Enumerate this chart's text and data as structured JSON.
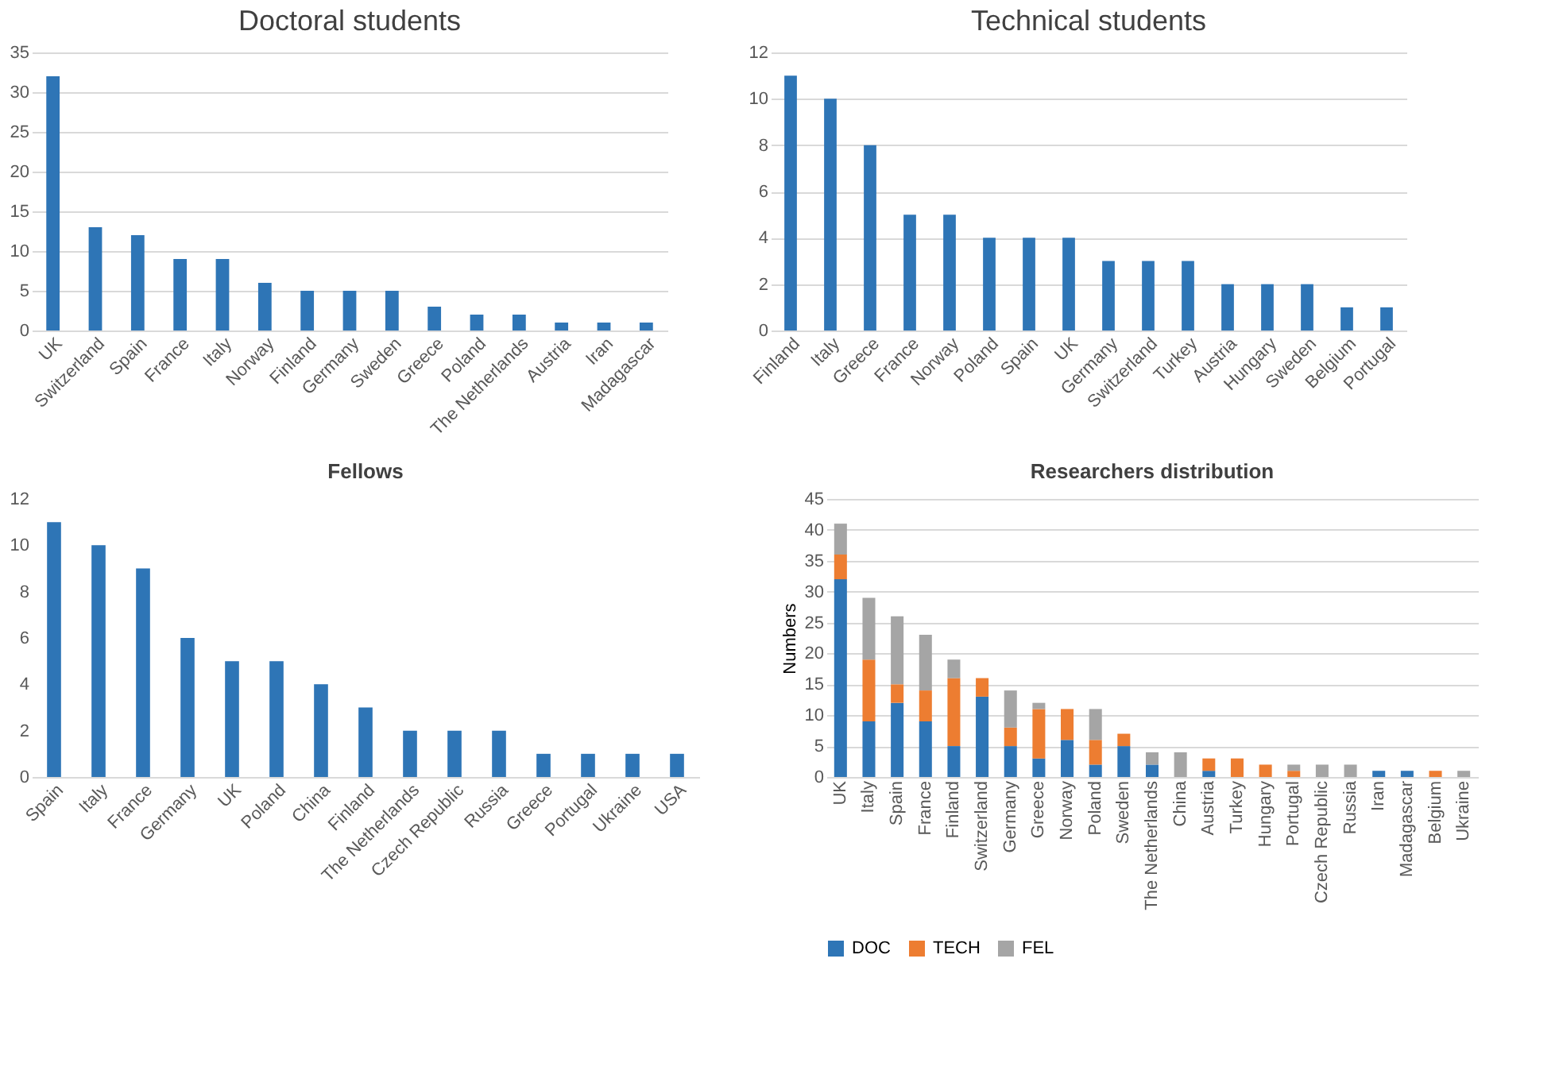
{
  "chart_data": [
    {
      "type": "bar",
      "title": "Doctoral students",
      "categories": [
        "UK",
        "Switzerland",
        "Spain",
        "France",
        "Italy",
        "Norway",
        "Finland",
        "Germany",
        "Sweden",
        "Greece",
        "Poland",
        "The Netherlands",
        "Austria",
        "Iran",
        "Madagascar"
      ],
      "values": [
        32,
        13,
        12,
        9,
        9,
        6,
        5,
        5,
        5,
        3,
        2,
        2,
        1,
        1,
        1
      ],
      "color": "#2e75b6",
      "ylim": [
        0,
        35
      ],
      "yticks": [
        0,
        5,
        10,
        15,
        20,
        25,
        30,
        35
      ],
      "grid": "y"
    },
    {
      "type": "bar",
      "title": "Technical students",
      "categories": [
        "Finland",
        "Italy",
        "Greece",
        "France",
        "Norway",
        "Poland",
        "Spain",
        "UK",
        "Germany",
        "Switzerland",
        "Turkey",
        "Austria",
        "Hungary",
        "Sweden",
        "Belgium",
        "Portugal"
      ],
      "values": [
        11,
        10,
        8,
        5,
        5,
        4,
        4,
        4,
        3,
        3,
        3,
        2,
        2,
        2,
        1,
        1
      ],
      "color": "#2e75b6",
      "ylim": [
        0,
        12
      ],
      "yticks": [
        0,
        2,
        4,
        6,
        8,
        10,
        12
      ],
      "grid": "y"
    },
    {
      "type": "bar",
      "title": "Fellows",
      "categories": [
        "Spain",
        "Italy",
        "France",
        "Germany",
        "UK",
        "Poland",
        "China",
        "Finland",
        "The Netherlands",
        "Czech Republic",
        "Russia",
        "Greece",
        "Portugal",
        "Ukraine",
        "USA"
      ],
      "values": [
        11,
        10,
        9,
        6,
        5,
        5,
        4,
        3,
        2,
        2,
        2,
        1,
        1,
        1,
        1
      ],
      "color": "#2e75b6",
      "ylim": [
        0,
        12
      ],
      "yticks": [
        0,
        2,
        4,
        6,
        8,
        10,
        12
      ],
      "grid": false
    },
    {
      "type": "bar",
      "title": "Researchers distribution",
      "ylabel": "Numbers",
      "stacked": true,
      "legend": "bottom",
      "grid": "y",
      "ylim": [
        0,
        45
      ],
      "yticks": [
        0,
        5,
        10,
        15,
        20,
        25,
        30,
        35,
        40,
        45
      ],
      "categories": [
        "UK",
        "Italy",
        "Spain",
        "France",
        "Finland",
        "Switzerland",
        "Germany",
        "Greece",
        "Norway",
        "Poland",
        "Sweden",
        "The Netherlands",
        "China",
        "Austria",
        "Turkey",
        "Hungary",
        "Portugal",
        "Czech Republic",
        "Russia",
        "Iran",
        "Madagascar",
        "Belgium",
        "Ukraine"
      ],
      "series": [
        {
          "name": "DOC",
          "color": "#2e75b6",
          "values": [
            32,
            9,
            12,
            9,
            5,
            13,
            5,
            3,
            6,
            2,
            5,
            2,
            0,
            1,
            0,
            0,
            0,
            0,
            0,
            1,
            1,
            0,
            0
          ]
        },
        {
          "name": "TECH",
          "color": "#ed7d31",
          "values": [
            4,
            10,
            3,
            5,
            11,
            3,
            3,
            8,
            5,
            4,
            2,
            0,
            0,
            2,
            3,
            2,
            1,
            0,
            0,
            0,
            0,
            1,
            0
          ]
        },
        {
          "name": "FEL",
          "color": "#a5a5a5",
          "values": [
            5,
            10,
            11,
            9,
            3,
            0,
            6,
            1,
            0,
            5,
            0,
            2,
            4,
            0,
            0,
            0,
            1,
            2,
            2,
            0,
            0,
            0,
            1
          ]
        }
      ]
    }
  ]
}
